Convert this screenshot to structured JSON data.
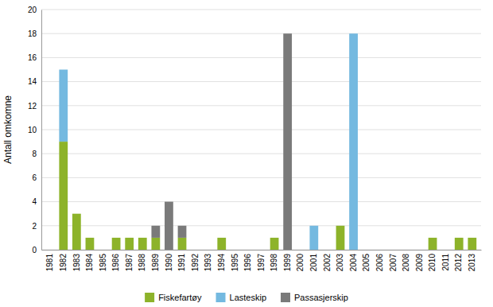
{
  "chart_data": {
    "type": "bar",
    "stacked": true,
    "categories": [
      "1981",
      "1982",
      "1983",
      "1984",
      "1985",
      "1986",
      "1987",
      "1988",
      "1989",
      "1990",
      "1991",
      "1992",
      "1993",
      "1994",
      "1995",
      "1996",
      "1997",
      "1998",
      "1999",
      "2000",
      "2001",
      "2002",
      "2003",
      "2004",
      "2005",
      "2006",
      "2007",
      "2008",
      "2009",
      "2010",
      "2011",
      "2012",
      "2013"
    ],
    "series": [
      {
        "name": "Fiskefartøy",
        "color": "#8db32a",
        "values": [
          0,
          9,
          3,
          1,
          0,
          1,
          1,
          1,
          1,
          0,
          1,
          0,
          0,
          1,
          0,
          0,
          0,
          1,
          0,
          0,
          0,
          0,
          2,
          0,
          0,
          0,
          0,
          0,
          0,
          1,
          0,
          1,
          1
        ]
      },
      {
        "name": "Lasteskip",
        "color": "#74b9e0",
        "values": [
          0,
          6,
          0,
          0,
          0,
          0,
          0,
          0,
          0,
          0,
          0,
          0,
          0,
          0,
          0,
          0,
          0,
          0,
          0,
          0,
          2,
          0,
          0,
          18,
          0,
          0,
          0,
          0,
          0,
          0,
          0,
          0,
          0
        ]
      },
      {
        "name": "Passasjerskip",
        "color": "#7a7a7a",
        "values": [
          0,
          0,
          0,
          0,
          0,
          0,
          0,
          0,
          1,
          4,
          1,
          0,
          0,
          0,
          0,
          0,
          0,
          0,
          18,
          0,
          0,
          0,
          0,
          0,
          0,
          0,
          0,
          0,
          0,
          0,
          0,
          0,
          0
        ]
      }
    ],
    "ylabel": "Antall omkomne",
    "ylim": [
      0,
      20
    ],
    "yticks": [
      0,
      2,
      4,
      6,
      8,
      10,
      12,
      14,
      16,
      18,
      20
    ],
    "grid": true,
    "legend": "bottom"
  }
}
